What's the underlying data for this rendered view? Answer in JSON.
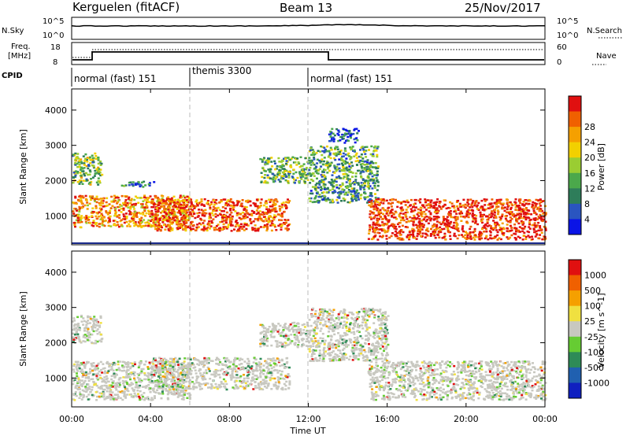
{
  "header": {
    "station": "Kerguelen (fitACF)",
    "beam": "Beam 13",
    "date": "25/Nov/2017"
  },
  "status_panels": {
    "noise": {
      "left_label": "N.Sky",
      "right_label": "N.Search",
      "left_ticks": [
        "10^5",
        "10^0"
      ],
      "right_ticks": [
        "10^5",
        "10^0"
      ]
    },
    "freq": {
      "left_label_line1": "Freq.",
      "left_label_line2": "[MHz]",
      "right_label": "Nave",
      "left_ticks": [
        "18",
        "8"
      ],
      "right_ticks": [
        "60",
        "0"
      ]
    },
    "cpid": {
      "label": "CPID",
      "modes": [
        {
          "text": "normal (fast) 151",
          "start_hour": 0
        },
        {
          "text": "themis 3300",
          "start_hour": 6
        },
        {
          "text": "normal (fast) 151",
          "start_hour": 12
        }
      ]
    }
  },
  "x_axis": {
    "label": "Time UT",
    "ticks": [
      "00:00",
      "04:00",
      "08:00",
      "12:00",
      "16:00",
      "20:00",
      "00:00"
    ],
    "range_hours": [
      0,
      24
    ]
  },
  "chart_data": [
    {
      "type": "heatmap",
      "parameter": "power",
      "ylabel": "Slant Range [km]",
      "ylim": [
        180,
        4600
      ],
      "yticks": [
        1000,
        2000,
        3000,
        4000
      ],
      "colorbar": {
        "label": "Power [dB]",
        "ticks": [
          "4",
          "8",
          "12",
          "16",
          "20",
          "24",
          "28"
        ],
        "colors": [
          "#0a14e6",
          "#2a55c0",
          "#2e7d5a",
          "#4ba84b",
          "#9acd32",
          "#f2d000",
          "#f5a000",
          "#f06000",
          "#e01010"
        ]
      },
      "scatter_regions": [
        {
          "t": [
            0.0,
            6.0
          ],
          "r": [
            700,
            1600
          ],
          "level": 0.75
        },
        {
          "t": [
            0.0,
            1.5
          ],
          "r": [
            1900,
            2800
          ],
          "level": 0.45
        },
        {
          "t": [
            2.5,
            4.2
          ],
          "r": [
            1850,
            2000
          ],
          "level": 0.2
        },
        {
          "t": [
            4.0,
            11.0
          ],
          "r": [
            600,
            1500
          ],
          "level": 0.85
        },
        {
          "t": [
            9.5,
            12.0
          ],
          "r": [
            1950,
            2700
          ],
          "level": 0.4
        },
        {
          "t": [
            12.0,
            15.5
          ],
          "r": [
            1400,
            3000
          ],
          "level": 0.35
        },
        {
          "t": [
            13.0,
            14.5
          ],
          "r": [
            3100,
            3500
          ],
          "level": 0.15
        },
        {
          "t": [
            15.0,
            24.0
          ],
          "r": [
            350,
            1500
          ],
          "level": 0.92
        }
      ]
    },
    {
      "type": "heatmap",
      "parameter": "velocity",
      "ylabel": "Slant Range [km]",
      "ylim": [
        180,
        4600
      ],
      "yticks": [
        1000,
        2000,
        3000,
        4000
      ],
      "colorbar": {
        "label": "Velocity [m s^-1]",
        "ticks": [
          "1000",
          "500",
          "100",
          "25",
          "-25",
          "-100",
          "-500",
          "-1000"
        ],
        "colors": [
          "#1020c0",
          "#2060b0",
          "#2e8b57",
          "#66cc33",
          "#c8c8c0",
          "#f0e040",
          "#f5a000",
          "#f06000",
          "#e01010"
        ]
      },
      "scatter_regions": [
        {
          "t": [
            0.0,
            6.0
          ],
          "r": [
            400,
            1500
          ],
          "level": 0.0
        },
        {
          "t": [
            4.0,
            11.0
          ],
          "r": [
            700,
            1600
          ],
          "level": 0.0
        },
        {
          "t": [
            9.5,
            12.0
          ],
          "r": [
            1900,
            2600
          ],
          "level": 0.0
        },
        {
          "t": [
            12.0,
            16.0
          ],
          "r": [
            1500,
            3000
          ],
          "level": 0.05
        },
        {
          "t": [
            15.0,
            24.0
          ],
          "r": [
            400,
            1500
          ],
          "level": 0.0
        },
        {
          "t": [
            0.0,
            1.5
          ],
          "r": [
            2000,
            2800
          ],
          "level": -0.4
        }
      ]
    }
  ]
}
